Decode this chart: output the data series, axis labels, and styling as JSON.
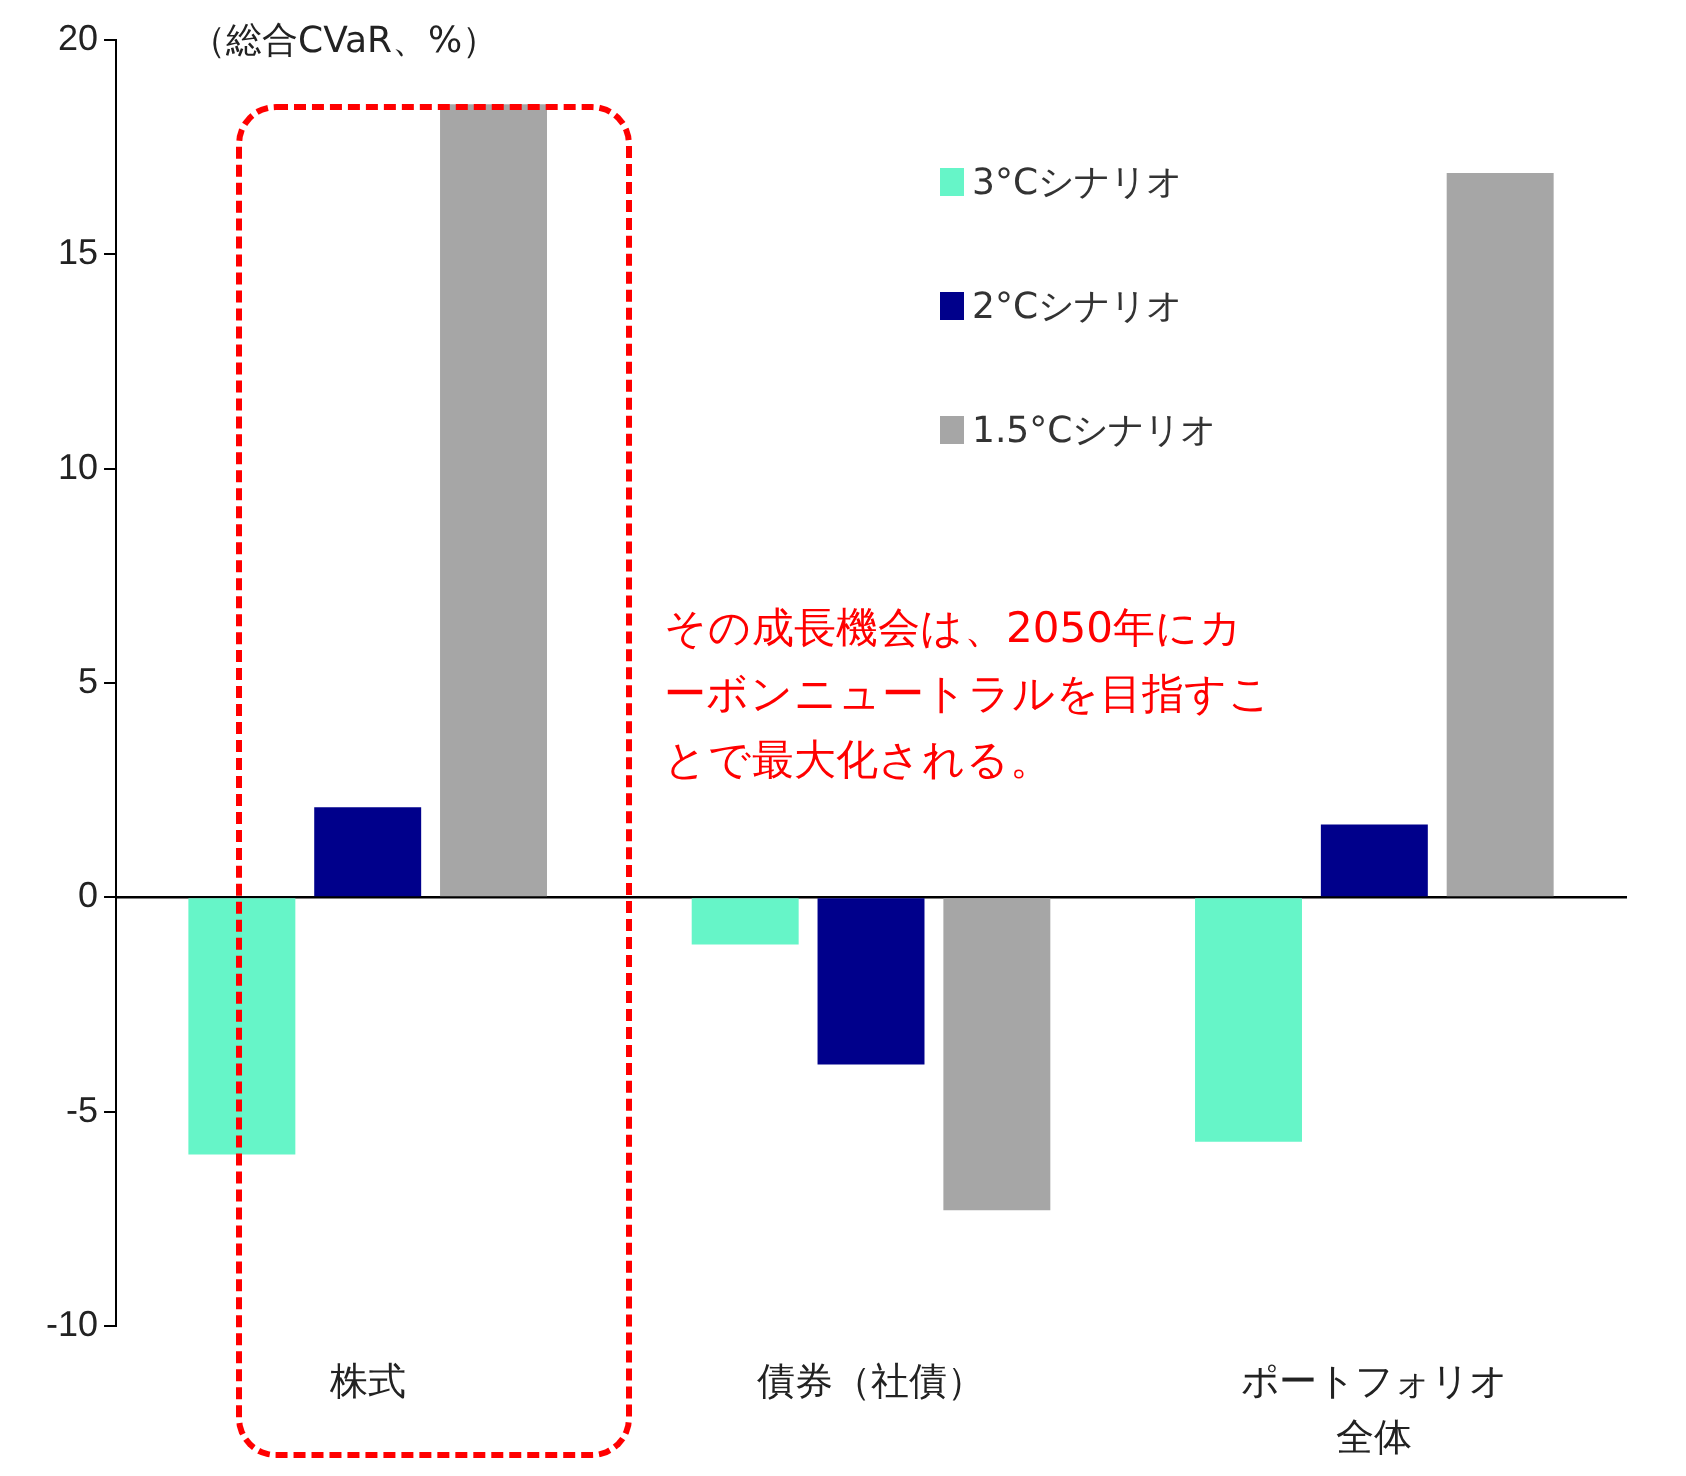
{
  "chart_data": {
    "type": "bar",
    "ylabel": "（総合CVaR、%）",
    "categories": [
      "株式",
      "債券（社債）",
      "ポートフォリオ全体"
    ],
    "series": [
      {
        "name": "3°Cシナリオ",
        "color": "#66f5c8",
        "values": [
          -6.0,
          -1.1,
          -5.7
        ]
      },
      {
        "name": "2°Cシナリオ",
        "color": "#00008b",
        "values": [
          2.1,
          -3.9,
          1.7
        ]
      },
      {
        "name": "1.5°Cシナリオ",
        "color": "#a6a6a6",
        "values": [
          18.5,
          -7.3,
          16.9
        ]
      }
    ],
    "ylim": [
      -10,
      20
    ],
    "yticks": [
      -10,
      -5,
      0,
      5,
      10,
      15,
      20
    ],
    "legend": "top right",
    "annotations": [
      "その成長機会は、2050年にカーボンニュートラルを目指すことで最大化される。"
    ]
  }
}
